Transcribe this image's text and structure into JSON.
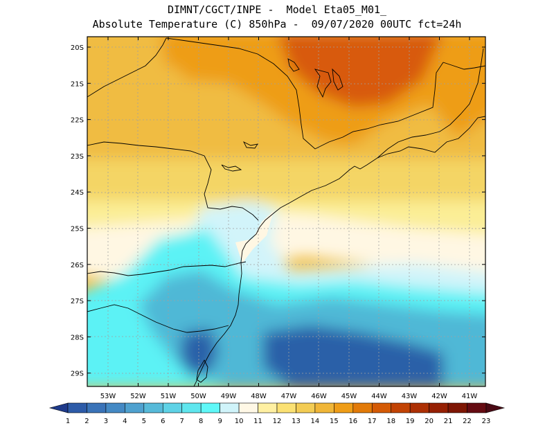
{
  "header": {
    "line1": "DIMNT/CGCT/INPE -  Model Eta05_M01_",
    "line2": "Absolute Temperature (C) 850hPa -  09/07/2020 00UTC fct=24h"
  },
  "map": {
    "lat_labels": [
      "20S",
      "21S",
      "22S",
      "23S",
      "24S",
      "25S",
      "26S",
      "27S",
      "28S",
      "29S"
    ],
    "lon_labels": [
      "53W",
      "52W",
      "51W",
      "50W",
      "49W",
      "48W",
      "47W",
      "46W",
      "45W",
      "44W",
      "43W",
      "42W",
      "41W"
    ],
    "colors": {
      "water_dark": "#2a60a8",
      "water_mid": "#4fb8d6",
      "cyan": "#5cf2f5",
      "pale_cyan": "#d2f4fa",
      "cream": "#fff7e3",
      "pale_yellow": "#fbee96",
      "yellow": "#f4d565",
      "gold": "#f0bc42",
      "orange": "#ee9d17",
      "dark_orange": "#d85a08",
      "border": "#000000"
    }
  },
  "colorbar": {
    "labels": [
      "1",
      "2",
      "3",
      "4",
      "5",
      "6",
      "7",
      "8",
      "9",
      "10",
      "11",
      "12",
      "13",
      "14",
      "15",
      "16",
      "17",
      "18",
      "19",
      "20",
      "21",
      "22",
      "23"
    ],
    "colors": [
      "#1f3e94",
      "#2d5ba8",
      "#3a73b8",
      "#4489c4",
      "#4fa1cf",
      "#57bad9",
      "#5ed2e6",
      "#5fe6ee",
      "#5ff8f8",
      "#d0f4fa",
      "#fff8e6",
      "#fff0a2",
      "#fbe173",
      "#f3cc54",
      "#f0b638",
      "#ef9d17",
      "#e27a08",
      "#d45a05",
      "#c24304",
      "#ad3004",
      "#962003",
      "#7e1604",
      "#650b12"
    ],
    "left_arrow_color": "#1e3a8a",
    "right_arrow_color": "#4a0a14"
  }
}
